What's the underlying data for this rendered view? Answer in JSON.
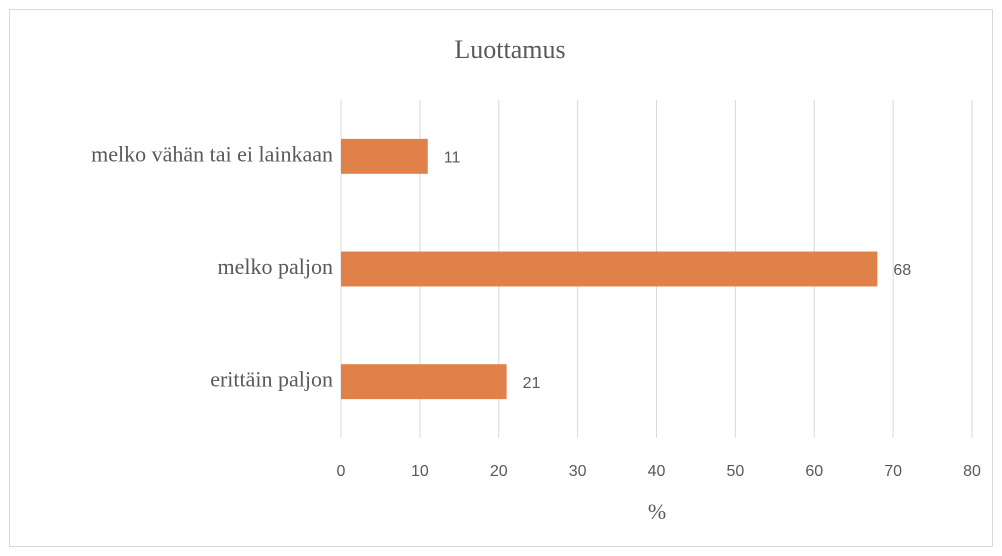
{
  "chart_data": {
    "type": "barh",
    "title": "Luottamus",
    "categories": [
      "melko vähän tai ei lainkaan",
      "melko paljon",
      "erittäin paljon"
    ],
    "values": [
      11,
      68,
      21
    ],
    "color": "#e0814a",
    "xlabel": "%",
    "xlim": [
      0,
      80
    ],
    "xticks": [
      0,
      10,
      20,
      30,
      40,
      50,
      60,
      70,
      80
    ],
    "grid": true
  }
}
